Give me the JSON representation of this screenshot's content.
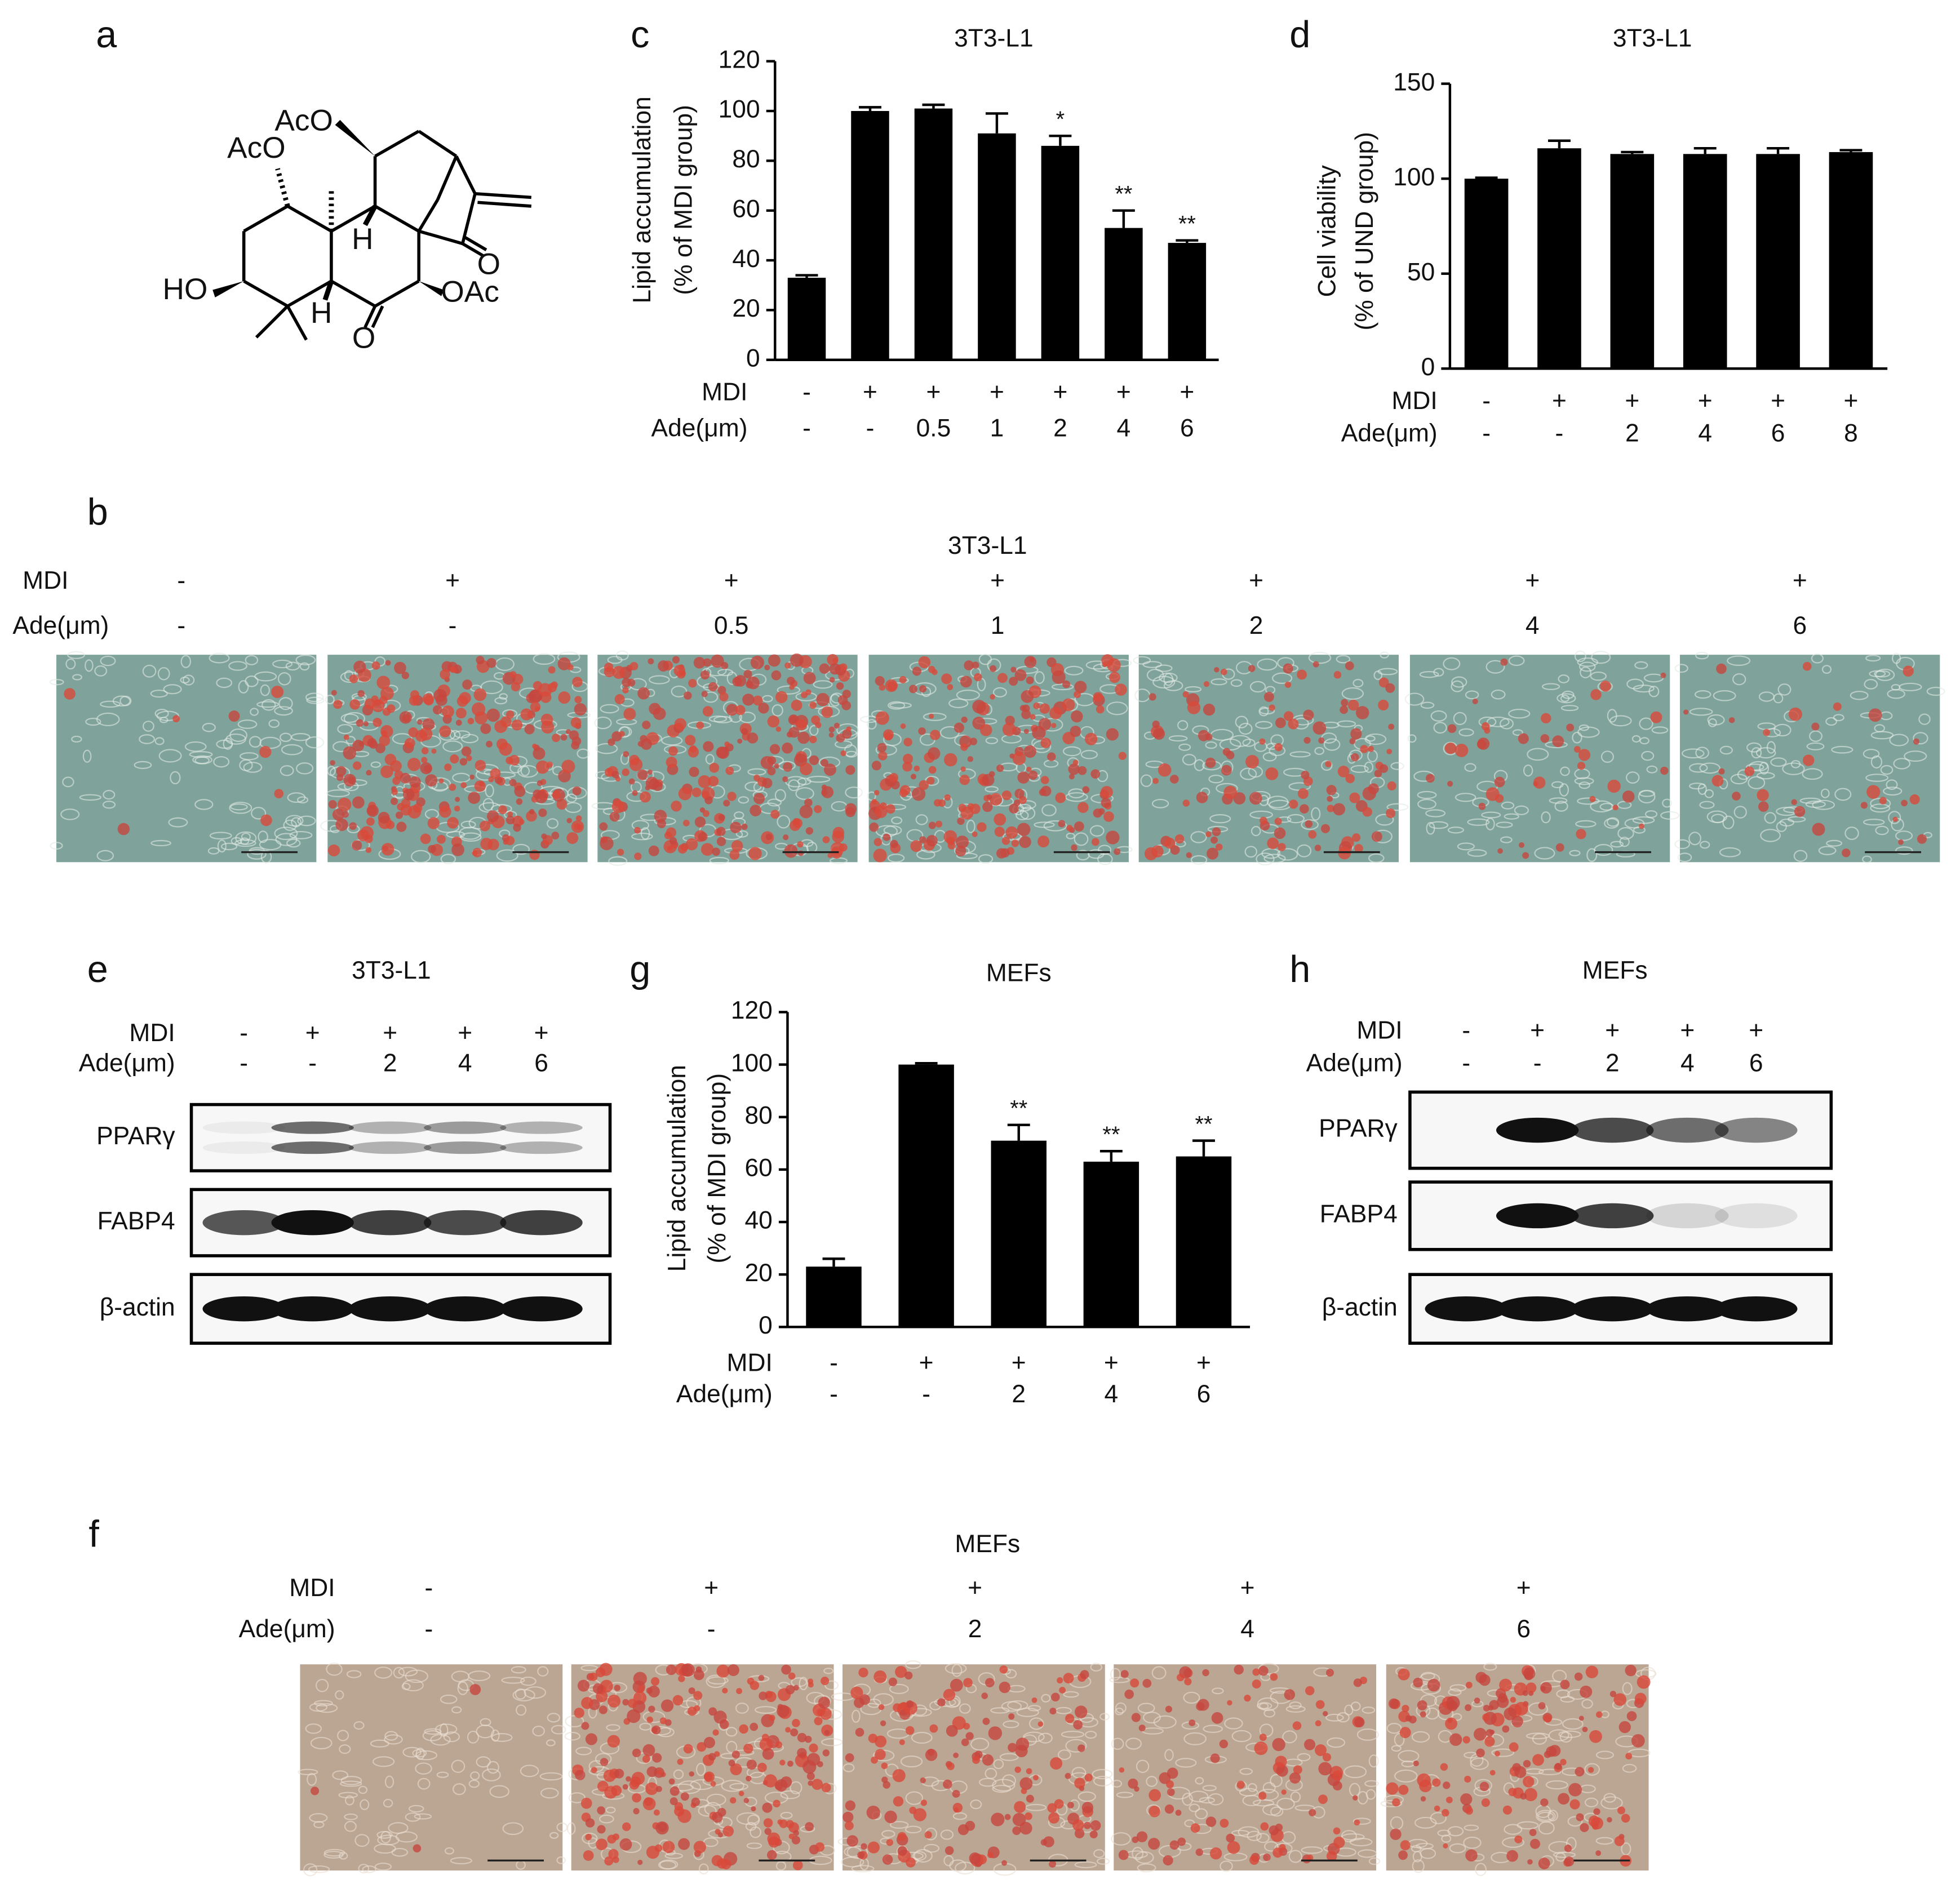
{
  "panels": {
    "a": {
      "label": "a",
      "atoms": [
        "AcO",
        "AcO",
        "HO",
        "H",
        "H",
        "O",
        "O",
        "OAc"
      ]
    },
    "b": {
      "label": "b",
      "title": "3T3-L1",
      "condition_rows": [
        {
          "label": "MDI",
          "values": [
            "-",
            "+",
            "+",
            "+",
            "+",
            "+",
            "+"
          ]
        },
        {
          "label": "Ade(μm)",
          "values": [
            "-",
            "-",
            "0.5",
            "1",
            "2",
            "4",
            "6"
          ]
        }
      ]
    },
    "e": {
      "label": "e",
      "title": "3T3-L1",
      "condition_rows": [
        {
          "label": "MDI",
          "values": [
            "-",
            "+",
            "+",
            "+",
            "+"
          ]
        },
        {
          "label": "Ade(μm)",
          "values": [
            "-",
            "-",
            "2",
            "4",
            "6"
          ]
        }
      ],
      "proteins": [
        "PPARγ",
        "FABP4",
        "β-actin"
      ]
    },
    "h": {
      "label": "h",
      "title": "MEFs",
      "condition_rows": [
        {
          "label": "MDI",
          "values": [
            "-",
            "+",
            "+",
            "+",
            "+"
          ]
        },
        {
          "label": "Ade(μm)",
          "values": [
            "-",
            "-",
            "2",
            "4",
            "6"
          ]
        }
      ],
      "proteins": [
        "PPARγ",
        "FABP4",
        "β-actin"
      ]
    },
    "f": {
      "label": "f",
      "title": "MEFs",
      "condition_rows": [
        {
          "label": "MDI",
          "values": [
            "-",
            "+",
            "+",
            "+",
            "+"
          ]
        },
        {
          "label": "Ade(μm)",
          "values": [
            "-",
            "-",
            "2",
            "4",
            "6"
          ]
        }
      ]
    }
  },
  "chart_data": [
    {
      "type": "bar",
      "panel_label": "c",
      "title": "3T3-L1",
      "ylabel": [
        "Lipid accumulation",
        "(% of MDI group)"
      ],
      "ylim": [
        0,
        120
      ],
      "yticks": [
        0,
        20,
        40,
        60,
        80,
        100,
        120
      ],
      "condition_rows": [
        {
          "label": "MDI",
          "values": [
            "-",
            "+",
            "+",
            "+",
            "+",
            "+",
            "+"
          ]
        },
        {
          "label": "Ade(μm)",
          "values": [
            "-",
            "-",
            "0.5",
            "1",
            "2",
            "4",
            "6"
          ]
        }
      ],
      "values": [
        33,
        100,
        101,
        91,
        86,
        53,
        47
      ],
      "errors": [
        1,
        1.5,
        1.5,
        8,
        4,
        7,
        1
      ],
      "annotations": [
        null,
        null,
        null,
        null,
        "*",
        "**",
        "**"
      ],
      "color": "#000000"
    },
    {
      "type": "bar",
      "panel_label": "d",
      "title": "3T3-L1",
      "ylabel": [
        "Cell viability",
        "(% of UND group)"
      ],
      "ylim": [
        0,
        150
      ],
      "yticks": [
        0,
        50,
        100,
        150
      ],
      "condition_rows": [
        {
          "label": "MDI",
          "values": [
            "-",
            "+",
            "+",
            "+",
            "+",
            "+"
          ]
        },
        {
          "label": "Ade(μm)",
          "values": [
            "-",
            "-",
            "2",
            "4",
            "6",
            "8"
          ]
        }
      ],
      "values": [
        100,
        116,
        113,
        113,
        113,
        114
      ],
      "errors": [
        0.5,
        4,
        1,
        3,
        3,
        1
      ],
      "color": "#000000"
    },
    {
      "type": "bar",
      "panel_label": "g",
      "title": "MEFs",
      "ylabel": [
        "Lipid accumulation",
        "(% of MDI group)"
      ],
      "ylim": [
        0,
        120
      ],
      "yticks": [
        0,
        20,
        40,
        60,
        80,
        100,
        120
      ],
      "condition_rows": [
        {
          "label": "MDI",
          "values": [
            "-",
            "+",
            "+",
            "+",
            "+"
          ]
        },
        {
          "label": "Ade(μm)",
          "values": [
            "-",
            "-",
            "2",
            "4",
            "6"
          ]
        }
      ],
      "values": [
        23,
        100,
        71,
        63,
        65
      ],
      "errors": [
        3,
        0.5,
        6,
        4,
        6
      ],
      "annotations": [
        null,
        null,
        "**",
        "**",
        "**"
      ],
      "color": "#000000"
    }
  ]
}
